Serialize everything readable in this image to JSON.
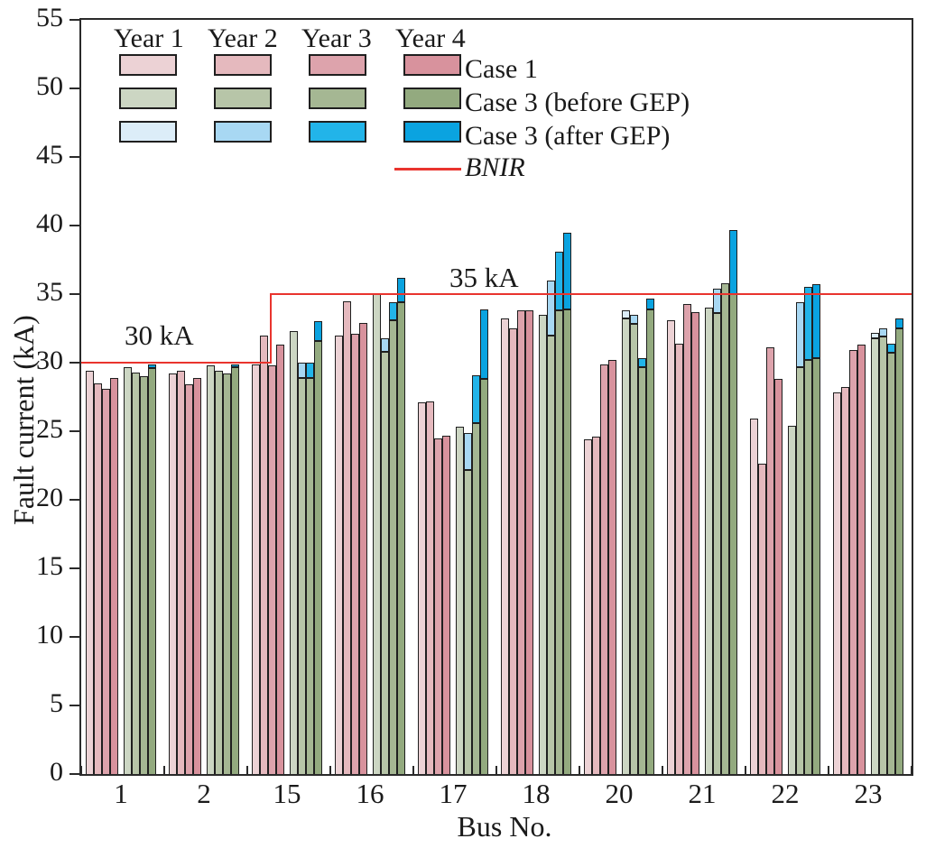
{
  "figure": {
    "ylabel": "Fault current (kA)",
    "xlabel": "Bus No."
  },
  "legend": {
    "year_headers": [
      "Year 1",
      "Year 2",
      "Year 3",
      "Year 4"
    ],
    "rows": [
      {
        "label": "Case 1",
        "colors": [
          "#ecd2d5",
          "#e5b9be",
          "#dda3ac",
          "#d8929d"
        ]
      },
      {
        "label": "Case 3 (before GEP)",
        "colors": [
          "#ccd6c3",
          "#b7c5a8",
          "#a5b793",
          "#93aa7f"
        ]
      },
      {
        "label": "Case 3 (after GEP)",
        "colors": [
          "#dcedf8",
          "#a8d8f3",
          "#22b4e9",
          "#0aa3e0"
        ]
      }
    ],
    "line": {
      "label": "BNIR",
      "color": "#e9342e"
    }
  },
  "chart_data": {
    "type": "bar",
    "title": "",
    "xlabel": "Bus No.",
    "ylabel": "Fault current (kA)",
    "ylim": [
      0,
      55
    ],
    "ytick_step": 5,
    "grid": false,
    "legend_position": "top-left",
    "categories": [
      "1",
      "2",
      "15",
      "16",
      "17",
      "18",
      "20",
      "21",
      "22",
      "23"
    ],
    "series": [
      {
        "name": "Case 1",
        "years": [
          {
            "label": "Year 1",
            "color": "#ecd2d5",
            "values": [
              29.4,
              29.2,
              29.9,
              32.0,
              27.1,
              33.2,
              24.4,
              33.1,
              25.9,
              27.8
            ]
          },
          {
            "label": "Year 2",
            "color": "#e5b9be",
            "values": [
              28.5,
              29.4,
              32.0,
              34.5,
              27.2,
              32.5,
              24.6,
              31.4,
              22.6,
              28.2
            ]
          },
          {
            "label": "Year 3",
            "color": "#dda3ac",
            "values": [
              28.1,
              28.4,
              29.8,
              32.1,
              24.5,
              33.8,
              29.9,
              34.3,
              31.1,
              30.9
            ]
          },
          {
            "label": "Year 4",
            "color": "#d8929d",
            "values": [
              28.9,
              28.9,
              31.3,
              32.9,
              24.7,
              33.8,
              30.2,
              33.7,
              28.8,
              31.3
            ]
          }
        ]
      },
      {
        "name": "Case 3 (before GEP)",
        "years": [
          {
            "label": "Year 1",
            "color": "#ccd6c3",
            "values": [
              29.7,
              29.8,
              32.3,
              35.0,
              25.3,
              33.5,
              33.2,
              34.0,
              25.4,
              31.8
            ]
          },
          {
            "label": "Year 2",
            "color": "#b7c5a8",
            "values": [
              29.3,
              29.4,
              28.9,
              30.8,
              22.2,
              32.0,
              32.8,
              33.6,
              29.7,
              31.9
            ]
          },
          {
            "label": "Year 3",
            "color": "#a5b793",
            "values": [
              29.0,
              29.2,
              28.9,
              33.1,
              25.6,
              33.8,
              29.7,
              35.8,
              30.2,
              30.7
            ]
          },
          {
            "label": "Year 4",
            "color": "#93aa7f",
            "values": [
              29.6,
              29.7,
              31.6,
              34.4,
              28.8,
              33.9,
              33.9,
              35.0,
              30.3,
              32.5
            ]
          }
        ]
      },
      {
        "name": "Case 3 (after GEP)",
        "years": [
          {
            "label": "Year 1",
            "color": "#dcedf8",
            "values": [
              29.7,
              29.8,
              32.3,
              35.0,
              25.3,
              33.5,
              33.8,
              34.0,
              25.4,
              32.2
            ]
          },
          {
            "label": "Year 2",
            "color": "#a8d8f3",
            "values": [
              29.3,
              29.4,
              30.0,
              31.8,
              24.9,
              36.0,
              33.5,
              35.4,
              34.4,
              32.5
            ]
          },
          {
            "label": "Year 3",
            "color": "#22b4e9",
            "values": [
              29.0,
              29.2,
              30.0,
              34.4,
              29.1,
              38.1,
              30.3,
              35.8,
              35.5,
              31.4
            ]
          },
          {
            "label": "Year 4",
            "color": "#0aa3e0",
            "values": [
              29.9,
              29.9,
              33.0,
              36.2,
              33.9,
              39.5,
              34.7,
              39.7,
              35.7,
              33.2
            ]
          }
        ]
      }
    ],
    "bnir_line": {
      "label": "BNIR",
      "color": "#e9342e",
      "segments": [
        {
          "from_bus": "1",
          "to_bus": "2",
          "value": 30
        },
        {
          "from_bus": "15",
          "to_bus": "23",
          "value": 35
        }
      ]
    },
    "annotations": [
      {
        "text": "30 kA",
        "value": 30
      },
      {
        "text": "35 kA",
        "value": 35
      }
    ]
  }
}
